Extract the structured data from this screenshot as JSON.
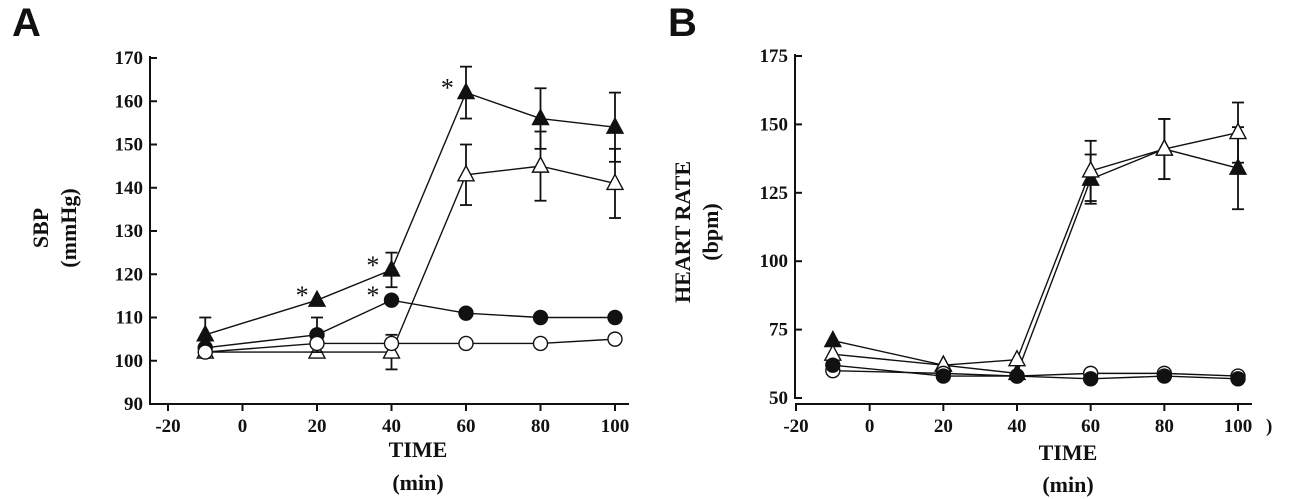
{
  "chart_data": [
    {
      "panel": "A",
      "type": "line",
      "xlabel": "TIME",
      "xunit": "(min)",
      "ylabel": "SBP",
      "yunit": "(mmHg)",
      "xlim": [
        -20,
        100
      ],
      "ylim": [
        90,
        170
      ],
      "xticks": [
        -20,
        0,
        20,
        40,
        60,
        80,
        100
      ],
      "yticks": [
        90,
        100,
        110,
        120,
        130,
        140,
        150,
        160,
        170
      ],
      "grid": false,
      "series": [
        {
          "name": "filled-triangle",
          "marker": "triangle",
          "filled": true,
          "x": [
            -10,
            20,
            40,
            60,
            80,
            100
          ],
          "y": [
            106,
            114,
            121,
            162,
            156,
            154
          ],
          "err": [
            4,
            0,
            4,
            6,
            7,
            8
          ]
        },
        {
          "name": "open-triangle",
          "marker": "triangle",
          "filled": false,
          "x": [
            -10,
            20,
            40,
            60,
            80,
            100
          ],
          "y": [
            102,
            102,
            102,
            143,
            145,
            141
          ],
          "err": [
            0,
            0,
            4,
            7,
            8,
            8
          ]
        },
        {
          "name": "filled-circle",
          "marker": "circle",
          "filled": true,
          "x": [
            -10,
            20,
            40,
            60,
            80,
            100
          ],
          "y": [
            103,
            106,
            114,
            111,
            110,
            110
          ],
          "err": [
            0,
            4,
            0,
            0,
            0,
            0
          ]
        },
        {
          "name": "open-circle",
          "marker": "circle",
          "filled": false,
          "x": [
            -10,
            20,
            40,
            60,
            80,
            100
          ],
          "y": [
            102,
            104,
            104,
            104,
            104,
            105
          ],
          "err": [
            0,
            0,
            0,
            0,
            0,
            0
          ]
        }
      ],
      "annotations": [
        {
          "text": "*",
          "x": 16,
          "y": 114
        },
        {
          "text": "*",
          "x": 35,
          "y": 121
        },
        {
          "text": "*",
          "x": 35,
          "y": 114
        },
        {
          "text": "*",
          "x": 55,
          "y": 162
        }
      ]
    },
    {
      "panel": "B",
      "type": "line",
      "xlabel": "TIME",
      "xunit": "(min)",
      "ylabel": "HEART RATE",
      "yunit": "(bpm)",
      "xlim": [
        -20,
        100
      ],
      "ylim": [
        50,
        175
      ],
      "xticks": [
        -20,
        0,
        20,
        40,
        60,
        80,
        100
      ],
      "yticks": [
        50,
        75,
        100,
        125,
        150,
        175
      ],
      "grid": false,
      "series": [
        {
          "name": "filled-triangle",
          "marker": "triangle",
          "filled": true,
          "x": [
            -10,
            20,
            40,
            60,
            80,
            100
          ],
          "y": [
            71,
            62,
            59,
            130,
            141,
            134
          ],
          "err": [
            0,
            0,
            0,
            9,
            11,
            15
          ]
        },
        {
          "name": "open-triangle",
          "marker": "triangle",
          "filled": false,
          "x": [
            -10,
            20,
            40,
            60,
            80,
            100
          ],
          "y": [
            66,
            62,
            64,
            133,
            141,
            147
          ],
          "err": [
            0,
            0,
            0,
            11,
            11,
            11
          ]
        },
        {
          "name": "open-circle",
          "marker": "circle",
          "filled": false,
          "x": [
            -10,
            20,
            40,
            60,
            80,
            100
          ],
          "y": [
            60,
            59,
            58,
            59,
            59,
            58
          ],
          "err": [
            0,
            0,
            0,
            0,
            0,
            0
          ]
        },
        {
          "name": "filled-circle",
          "marker": "circle",
          "filled": true,
          "x": [
            -10,
            20,
            40,
            60,
            80,
            100
          ],
          "y": [
            62,
            58,
            58,
            57,
            58,
            57
          ],
          "err": [
            0,
            0,
            0,
            0,
            0,
            0
          ]
        }
      ],
      "annotations": [],
      "trailing_text": ")"
    }
  ]
}
